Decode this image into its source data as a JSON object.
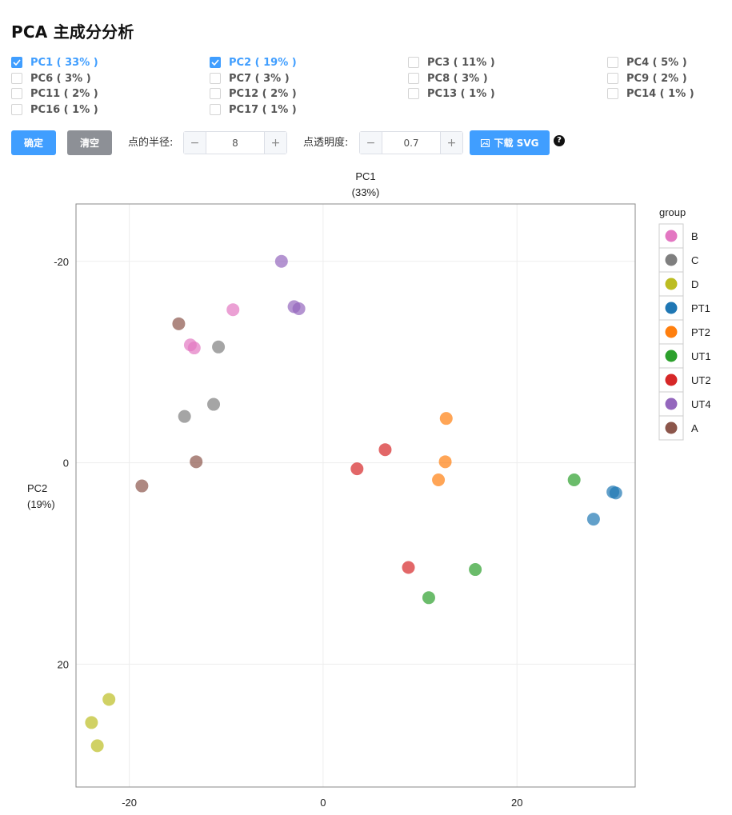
{
  "page": {
    "title": "PCA 主成分分析"
  },
  "pc_options": [
    {
      "label": "PC1 ( 33% )",
      "checked": true
    },
    {
      "label": "PC2 ( 19% )",
      "checked": true
    },
    {
      "label": "PC3 ( 11% )",
      "checked": false
    },
    {
      "label": "PC4 ( 5% )",
      "checked": false
    },
    {
      "label": "PC6 ( 3% )",
      "checked": false
    },
    {
      "label": "PC7 ( 3% )",
      "checked": false
    },
    {
      "label": "PC8 ( 3% )",
      "checked": false
    },
    {
      "label": "PC9 ( 2% )",
      "checked": false
    },
    {
      "label": "PC11 ( 2% )",
      "checked": false
    },
    {
      "label": "PC12 ( 2% )",
      "checked": false
    },
    {
      "label": "PC13 ( 1% )",
      "checked": false
    },
    {
      "label": "PC14 ( 1% )",
      "checked": false
    },
    {
      "label": "PC16 ( 1% )",
      "checked": false
    },
    {
      "label": "PC17 ( 1% )",
      "checked": false
    }
  ],
  "toolbar": {
    "confirm_label": "确定",
    "clear_label": "清空",
    "radius_label": "点的半径:",
    "radius_value": "8",
    "opacity_label": "点透明度:",
    "opacity_value": "0.7",
    "minus": "−",
    "plus": "+",
    "download_label": "下载 SVG",
    "help": "?",
    "download_icon": "image-icon"
  },
  "chart_data": {
    "type": "scatter",
    "xlabel": "PC1",
    "xlabel_sub": "(33%)",
    "ylabel": "PC2",
    "ylabel_sub": "(19%)",
    "xlim": [
      -25.5,
      32.2
    ],
    "ylim": [
      -25.7,
      32.2
    ],
    "y_inverted": true,
    "x_ticks": [
      -20,
      0,
      20
    ],
    "y_ticks": [
      -20,
      0,
      20
    ],
    "grid": true,
    "point_radius": 8,
    "opacity": 0.7,
    "legend_title": "group",
    "legend_position": "right",
    "series": [
      {
        "name": "B",
        "color": "#e377c2",
        "points": [
          [
            -9.3,
            -15.2
          ],
          [
            -13.7,
            -11.7
          ],
          [
            -13.3,
            -11.4
          ]
        ]
      },
      {
        "name": "C",
        "color": "#7f7f7f",
        "points": [
          [
            -10.8,
            -11.5
          ],
          [
            -14.3,
            -4.6
          ],
          [
            -11.3,
            -5.8
          ]
        ]
      },
      {
        "name": "D",
        "color": "#bcbd22",
        "points": [
          [
            -22.1,
            23.5
          ],
          [
            -23.9,
            25.8
          ],
          [
            -23.3,
            28.1
          ]
        ]
      },
      {
        "name": "PT1",
        "color": "#1f77b4",
        "points": [
          [
            29.9,
            2.9
          ],
          [
            30.2,
            3.0
          ],
          [
            27.9,
            5.6
          ]
        ]
      },
      {
        "name": "PT2",
        "color": "#ff7f0e",
        "points": [
          [
            12.7,
            -4.4
          ],
          [
            12.6,
            -0.1
          ],
          [
            11.9,
            1.7
          ]
        ]
      },
      {
        "name": "UT1",
        "color": "#2ca02c",
        "points": [
          [
            25.9,
            1.7
          ],
          [
            15.7,
            10.6
          ],
          [
            10.9,
            13.4
          ]
        ]
      },
      {
        "name": "UT2",
        "color": "#d62728",
        "points": [
          [
            6.4,
            -1.3
          ],
          [
            3.5,
            0.6
          ],
          [
            8.8,
            10.4
          ]
        ]
      },
      {
        "name": "UT4",
        "color": "#9467bd",
        "points": [
          [
            -4.3,
            -20.0
          ],
          [
            -3.0,
            -15.5
          ],
          [
            -2.5,
            -15.3
          ]
        ]
      },
      {
        "name": "A",
        "color": "#8c564b",
        "points": [
          [
            -14.9,
            -13.8
          ],
          [
            -13.1,
            -0.1
          ],
          [
            -18.7,
            2.3
          ]
        ]
      }
    ]
  }
}
